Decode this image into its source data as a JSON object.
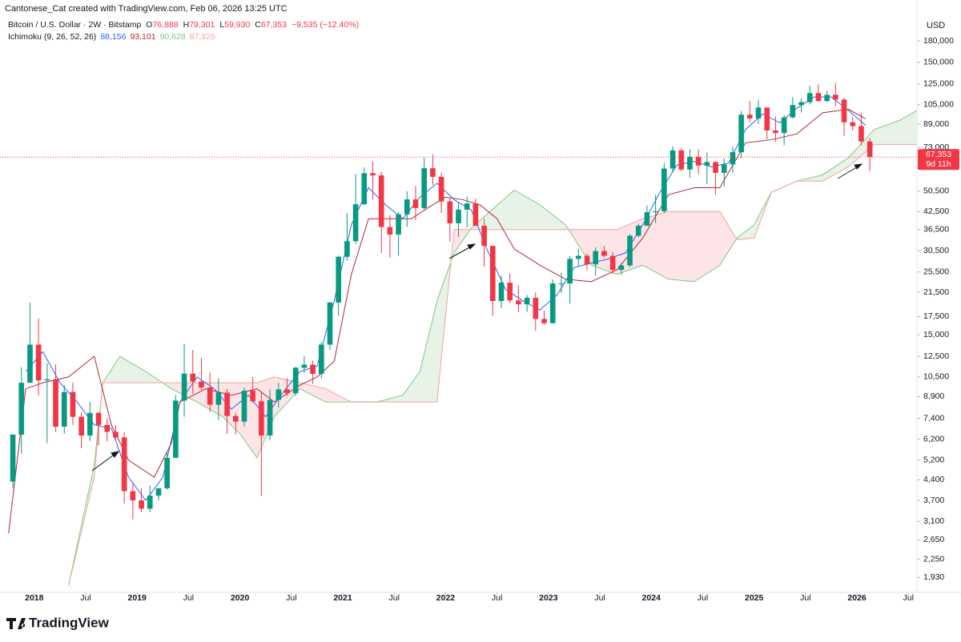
{
  "header": {
    "credit": "Cantonese_Cat created with TradingView.com, Feb 06, 2026 13:25 UTC",
    "symbol": "Bitcoin / U.S. Dollar · 2W · Bitstamp",
    "ohlc": [
      {
        "k": "O",
        "v": "76,888"
      },
      {
        "k": "H",
        "v": "79,301"
      },
      {
        "k": "L",
        "v": "59,930"
      },
      {
        "k": "C",
        "v": "67,353"
      },
      {
        "k": "",
        "v": "−9,535 (−12.40%)"
      }
    ],
    "indicator": "Ichimoku (9, 26, 52, 26)",
    "indicator_values": [
      "88,156",
      "93,101",
      "90,628",
      "87,925"
    ],
    "currency": "USD",
    "logo": "TradingView"
  },
  "chart_data": {
    "type": "candlestick",
    "log_scale": true,
    "up_color": "#089981",
    "down_color": "#f23645",
    "xlim": [
      "2017-09",
      "2026-08"
    ],
    "xticks": [
      {
        "value": "2018-01",
        "label": "2018"
      },
      {
        "value": "2018-07",
        "label": "Jul"
      },
      {
        "value": "2019-01",
        "label": "2019"
      },
      {
        "value": "2019-07",
        "label": "Jul"
      },
      {
        "value": "2020-01",
        "label": "2020"
      },
      {
        "value": "2020-07",
        "label": "Jul"
      },
      {
        "value": "2021-01",
        "label": "2021"
      },
      {
        "value": "2021-07",
        "label": "Jul"
      },
      {
        "value": "2022-01",
        "label": "2022"
      },
      {
        "value": "2022-07",
        "label": "Jul"
      },
      {
        "value": "2023-01",
        "label": "2023"
      },
      {
        "value": "2023-07",
        "label": "Jul"
      },
      {
        "value": "2024-01",
        "label": "2024"
      },
      {
        "value": "2024-07",
        "label": "Jul"
      },
      {
        "value": "2025-01",
        "label": "2025"
      },
      {
        "value": "2025-07",
        "label": "Jul"
      },
      {
        "value": "2026-01",
        "label": "2026"
      },
      {
        "value": "2026-07",
        "label": "Jul"
      }
    ],
    "ylim": [
      1700,
      219000
    ],
    "yticks": [
      {
        "value": 180000,
        "label": "180,000"
      },
      {
        "value": 150000,
        "label": "150,000"
      },
      {
        "value": 125000,
        "label": "125,000"
      },
      {
        "value": 105000,
        "label": "105,000"
      },
      {
        "value": 89000,
        "label": "89,000"
      },
      {
        "value": 73000,
        "label": "73,000"
      },
      {
        "value": 50500,
        "label": "50,500"
      },
      {
        "value": 42500,
        "label": "42,500"
      },
      {
        "value": 36500,
        "label": "36,500"
      },
      {
        "value": 30500,
        "label": "30,500"
      },
      {
        "value": 25500,
        "label": "25,500"
      },
      {
        "value": 21500,
        "label": "21,500"
      },
      {
        "value": 17500,
        "label": "17,500"
      },
      {
        "value": 15000,
        "label": "15,000"
      },
      {
        "value": 12500,
        "label": "12,500"
      },
      {
        "value": 10500,
        "label": "10,500"
      },
      {
        "value": 8900,
        "label": "8,900"
      },
      {
        "value": 7400,
        "label": "7,400"
      },
      {
        "value": 6200,
        "label": "6,200"
      },
      {
        "value": 5200,
        "label": "5,200"
      },
      {
        "value": 4400,
        "label": "4,400"
      },
      {
        "value": 3700,
        "label": "3,700"
      },
      {
        "value": 3100,
        "label": "3,100"
      },
      {
        "value": 2650,
        "label": "2,650"
      },
      {
        "value": 2250,
        "label": "2,250"
      },
      {
        "value": 1930,
        "label": "1,930"
      }
    ],
    "price_line": {
      "value": 67353,
      "label": "67,353",
      "countdown": "9d 11h",
      "color": "#f23645"
    },
    "candles": {
      "x": [
        "2017-10",
        "2017-11",
        "2017-12",
        "2018-01",
        "2018-02",
        "2018-03",
        "2018-04",
        "2018-05",
        "2018-06",
        "2018-07",
        "2018-08",
        "2018-09",
        "2018-10",
        "2018-11",
        "2018-12",
        "2019-01",
        "2019-02",
        "2019-03",
        "2019-04",
        "2019-05",
        "2019-06",
        "2019-07",
        "2019-08",
        "2019-09",
        "2019-10",
        "2019-11",
        "2019-12",
        "2020-01",
        "2020-02",
        "2020-03",
        "2020-04",
        "2020-05",
        "2020-06",
        "2020-07",
        "2020-08",
        "2020-09",
        "2020-10",
        "2020-11",
        "2020-12",
        "2021-01",
        "2021-02",
        "2021-03",
        "2021-04",
        "2021-05",
        "2021-06",
        "2021-07",
        "2021-08",
        "2021-09",
        "2021-10",
        "2021-11",
        "2021-12",
        "2022-01",
        "2022-02",
        "2022-03",
        "2022-04",
        "2022-05",
        "2022-06",
        "2022-07",
        "2022-08",
        "2022-09",
        "2022-10",
        "2022-11",
        "2022-12",
        "2023-01",
        "2023-02",
        "2023-03",
        "2023-04",
        "2023-05",
        "2023-06",
        "2023-07",
        "2023-08",
        "2023-09",
        "2023-10",
        "2023-11",
        "2023-12",
        "2024-01",
        "2024-02",
        "2024-03",
        "2024-04",
        "2024-05",
        "2024-06",
        "2024-07",
        "2024-08",
        "2024-09",
        "2024-10",
        "2024-11",
        "2024-12",
        "2025-01",
        "2025-02",
        "2025-03",
        "2025-04",
        "2025-05",
        "2025-06",
        "2025-07",
        "2025-08",
        "2025-09",
        "2025-10",
        "2025-11",
        "2025-12",
        "2026-01",
        "2026-02"
      ],
      "open": [
        4340,
        6450,
        10000,
        13800,
        10200,
        10300,
        6900,
        9250,
        7500,
        6400,
        7750,
        7000,
        6600,
        6300,
        4000,
        3700,
        3450,
        3850,
        4100,
        5300,
        8600,
        10800,
        10100,
        9600,
        8300,
        9200,
        7550,
        7200,
        9350,
        8550,
        6400,
        8650,
        9450,
        9150,
        11350,
        11650,
        10780,
        13800,
        19700,
        29000,
        33100,
        45200,
        58800,
        57700,
        37300,
        35000,
        41500,
        47100,
        43800,
        61300,
        57000,
        46300,
        38500,
        43200,
        45500,
        37700,
        31800,
        19950,
        23300,
        20050,
        19400,
        20500,
        17150,
        16550,
        23150,
        23150,
        28500,
        29250,
        27200,
        30450,
        29250,
        25950,
        26950,
        34650,
        37700,
        42250,
        42600,
        61150,
        71300,
        60650,
        67500,
        62700,
        64600,
        58950,
        63300,
        70200,
        96400,
        93400,
        102400,
        84350,
        82550,
        94200,
        104600,
        107150,
        115750,
        108250,
        114050,
        109500,
        90400,
        87500,
        76888
      ],
      "high": [
        6470,
        11400,
        19700,
        17200,
        11800,
        11700,
        9800,
        10000,
        7800,
        8500,
        7800,
        7400,
        7000,
        6600,
        4300,
        4100,
        4200,
        4100,
        5600,
        9000,
        13900,
        13200,
        12300,
        10900,
        10400,
        9500,
        7750,
        9600,
        10500,
        9200,
        9450,
        10000,
        10400,
        11450,
        12500,
        12050,
        14100,
        19850,
        29300,
        41950,
        58350,
        61800,
        64900,
        59600,
        41300,
        42300,
        50500,
        52900,
        67000,
        69000,
        59100,
        47900,
        45800,
        48200,
        47400,
        40000,
        31900,
        24650,
        25200,
        22800,
        21000,
        21450,
        18400,
        23950,
        25300,
        29200,
        31000,
        29850,
        31450,
        31800,
        30200,
        27500,
        35200,
        38450,
        44700,
        48950,
        64000,
        73800,
        72800,
        71950,
        71950,
        70000,
        65100,
        66500,
        73600,
        99600,
        108300,
        109350,
        102500,
        95000,
        95750,
        111900,
        110500,
        123200,
        124450,
        117900,
        126200,
        111100,
        94600,
        97900,
        79301
      ],
      "low": [
        4110,
        5500,
        10700,
        9000,
        6000,
        6600,
        6500,
        7000,
        5750,
        6100,
        5900,
        6100,
        6200,
        3600,
        3150,
        3350,
        3350,
        3700,
        4050,
        5300,
        7500,
        9100,
        9400,
        7800,
        7300,
        6500,
        6450,
        6900,
        8450,
        3850,
        6150,
        8100,
        8950,
        8950,
        10900,
        9900,
        10400,
        13200,
        17600,
        28100,
        32300,
        45000,
        47000,
        30000,
        28800,
        29300,
        37300,
        39600,
        43300,
        53300,
        42000,
        33000,
        34300,
        37200,
        37600,
        26700,
        17600,
        18800,
        19550,
        18150,
        18200,
        15500,
        16300,
        16500,
        21350,
        19550,
        26950,
        25800,
        24750,
        28850,
        25150,
        24950,
        26550,
        34100,
        37600,
        38550,
        41900,
        59300,
        59700,
        56550,
        58400,
        53500,
        49000,
        52550,
        58900,
        66800,
        90500,
        89200,
        78200,
        76600,
        74500,
        93400,
        98200,
        105100,
        107300,
        107250,
        103500,
        80600,
        84400,
        74500,
        59930
      ],
      "close": [
        6450,
        10000,
        13800,
        10200,
        10300,
        6900,
        9250,
        7500,
        6400,
        7750,
        7000,
        6600,
        6300,
        4000,
        3700,
        3450,
        3850,
        4100,
        5300,
        8600,
        10800,
        10100,
        9600,
        8300,
        9200,
        7550,
        7200,
        9350,
        8550,
        6400,
        8650,
        9450,
        9150,
        11350,
        11650,
        10780,
        13800,
        19700,
        29000,
        33100,
        45200,
        58800,
        57700,
        37300,
        35000,
        41500,
        47100,
        43800,
        61300,
        57000,
        46300,
        38500,
        43200,
        45500,
        37700,
        31800,
        19950,
        23300,
        20050,
        19400,
        20500,
        17150,
        16550,
        23150,
        23150,
        28500,
        29250,
        27200,
        30450,
        29250,
        25950,
        26950,
        34650,
        37700,
        42250,
        42600,
        61150,
        71300,
        60650,
        67500,
        62700,
        64600,
        58950,
        63300,
        70200,
        96400,
        93400,
        102400,
        84350,
        82550,
        94200,
        104600,
        107150,
        115750,
        108250,
        114050,
        109500,
        90400,
        87500,
        76888,
        67353
      ]
    },
    "lines": [
      {
        "name": "Conversion Line",
        "color": "#2962ff",
        "x": [
          "2017-12",
          "2018-02",
          "2018-04",
          "2018-06",
          "2018-08",
          "2018-10",
          "2018-12",
          "2019-02",
          "2019-04",
          "2019-06",
          "2019-08",
          "2019-10",
          "2019-12",
          "2020-02",
          "2020-04",
          "2020-06",
          "2020-08",
          "2020-10",
          "2020-12",
          "2021-02",
          "2021-04",
          "2021-06",
          "2021-08",
          "2021-10",
          "2021-12",
          "2022-02",
          "2022-04",
          "2022-06",
          "2022-08",
          "2022-10",
          "2022-12",
          "2023-02",
          "2023-04",
          "2023-06",
          "2023-08",
          "2023-10",
          "2023-12",
          "2024-02",
          "2024-04",
          "2024-06",
          "2024-08",
          "2024-10",
          "2024-12",
          "2025-02",
          "2025-04",
          "2025-06",
          "2025-08",
          "2025-10",
          "2025-12",
          "2026-02"
        ],
        "values": [
          11000,
          13000,
          10000,
          8500,
          7000,
          6800,
          4500,
          3700,
          4500,
          8500,
          10500,
          9500,
          8000,
          9000,
          7500,
          9200,
          11000,
          11500,
          20000,
          38000,
          52000,
          45000,
          40000,
          48000,
          54000,
          47000,
          43000,
          30000,
          22000,
          20000,
          18500,
          21000,
          26500,
          27500,
          28500,
          30000,
          38000,
          50000,
          63000,
          65000,
          62000,
          64000,
          85000,
          97000,
          90000,
          102000,
          112000,
          112000,
          100000,
          88156
        ]
      },
      {
        "name": "Base Line",
        "color": "#b22833",
        "x": [
          "2017-10",
          "2017-12",
          "2018-02",
          "2018-05",
          "2018-08",
          "2018-10",
          "2018-12",
          "2019-03",
          "2019-05",
          "2019-06",
          "2019-09",
          "2019-12",
          "2020-03",
          "2020-05",
          "2020-08",
          "2020-10",
          "2020-12",
          "2021-02",
          "2021-04",
          "2021-06",
          "2021-09",
          "2021-11",
          "2022-01",
          "2022-03",
          "2022-05",
          "2022-07",
          "2022-09",
          "2022-12",
          "2023-03",
          "2023-06",
          "2023-09",
          "2023-12",
          "2024-03",
          "2024-06",
          "2024-09",
          "2024-12",
          "2025-03",
          "2025-06",
          "2025-09",
          "2025-12",
          "2026-02"
        ],
        "values": [
          2800,
          9500,
          10000,
          10500,
          12500,
          7000,
          5200,
          4500,
          6000,
          8500,
          9500,
          9000,
          9500,
          8500,
          9800,
          10500,
          12000,
          25000,
          40000,
          40000,
          40000,
          44000,
          48000,
          47000,
          45000,
          40000,
          31000,
          27000,
          24000,
          23500,
          26000,
          34000,
          49000,
          52000,
          52000,
          76000,
          78000,
          82000,
          98000,
          101000,
          93101
        ]
      }
    ],
    "cloud": {
      "x": [
        "2018-05",
        "2018-08",
        "2018-09",
        "2018-11",
        "2019-02",
        "2019-05",
        "2019-08",
        "2019-11",
        "2020-01",
        "2020-03",
        "2020-05",
        "2020-08",
        "2020-11",
        "2021-02",
        "2021-05",
        "2021-08",
        "2021-10",
        "2021-12",
        "2022-02",
        "2022-04",
        "2022-06",
        "2022-09",
        "2022-12",
        "2023-03",
        "2023-06",
        "2023-09",
        "2023-12",
        "2024-03",
        "2024-06",
        "2024-09",
        "2024-11",
        "2025-01",
        "2025-03",
        "2025-06",
        "2025-09",
        "2025-12",
        "2026-03",
        "2026-06",
        "2026-08"
      ],
      "span_a": {
        "name": "Leading Span A",
        "color": "#81c784",
        "fill": "rgba(67,160,71,0.13)",
        "values": [
          1800,
          5000,
          10000,
          12500,
          11000,
          9500,
          8500,
          7500,
          6500,
          5300,
          7500,
          9500,
          8500,
          8500,
          8500,
          9000,
          11000,
          20000,
          30000,
          37000,
          42000,
          51000,
          45000,
          38000,
          27000,
          25000,
          27000,
          24000,
          23500,
          27000,
          34000,
          38000,
          50000,
          55000,
          58000,
          67000,
          85000,
          92000,
          100000
        ]
      },
      "span_b": {
        "name": "Leading Span B",
        "color": "#f0a3a3",
        "fill": "rgba(242,54,69,0.13)",
        "values": [
          1800,
          4500,
          10000,
          10000,
          10000,
          10000,
          10000,
          10000,
          10000,
          10000,
          10500,
          10000,
          9500,
          8500,
          8500,
          8500,
          8500,
          8500,
          36500,
          36500,
          36500,
          36500,
          36500,
          36500,
          36500,
          36500,
          40000,
          42500,
          42500,
          42500,
          33500,
          34000,
          50000,
          55000,
          55000,
          62000,
          75000,
          75000,
          75000
        ]
      }
    }
  }
}
